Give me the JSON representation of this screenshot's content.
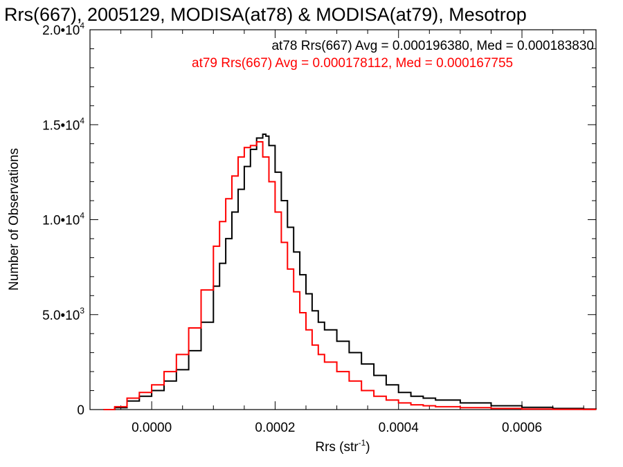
{
  "chart_data": {
    "type": "line",
    "title": "Rrs(667), 2005129, MODISA(at78) & MODISA(at79), Mesotrop",
    "xlabel": "Rrs (str",
    "xlabel_sup": "-1",
    "xlabel_tail": ")",
    "ylabel": "Number of Observations",
    "xlim": [
      -0.0001,
      0.00072
    ],
    "ylim": [
      0,
      20000
    ],
    "x_ticks": [
      {
        "value": 0.0,
        "label": "0.0000"
      },
      {
        "value": 0.0002,
        "label": "0.0002"
      },
      {
        "value": 0.0004,
        "label": "0.0004"
      },
      {
        "value": 0.0006,
        "label": "0.0006"
      }
    ],
    "y_ticks": [
      {
        "value": 0,
        "mant": "0",
        "exp": ""
      },
      {
        "value": 5000,
        "mant": "5.0•10",
        "exp": "3"
      },
      {
        "value": 10000,
        "mant": "1.0•10",
        "exp": "4"
      },
      {
        "value": 15000,
        "mant": "1.5•10",
        "exp": "4"
      },
      {
        "value": 20000,
        "mant": "2.0•10",
        "exp": "4"
      }
    ],
    "legend_position": "top-right",
    "series": [
      {
        "name": "at78",
        "color": "#000000",
        "stats_label": "at78 Rrs(667) Avg = 0.000196380, Med = 0.000183830",
        "x": [
          -7.8e-05,
          -6e-05,
          -4e-05,
          -2e-05,
          0.0,
          2e-05,
          4e-05,
          6e-05,
          8e-05,
          0.0001,
          0.00011,
          0.00012,
          0.00013,
          0.00014,
          0.00015,
          0.00016,
          0.00017,
          0.00018,
          0.000185,
          0.00019,
          0.0002,
          0.00021,
          0.00022,
          0.00023,
          0.00024,
          0.00025,
          0.00026,
          0.00027,
          0.00028,
          0.0003,
          0.00032,
          0.00034,
          0.00036,
          0.00038,
          0.0004,
          0.00042,
          0.00044,
          0.00046,
          0.0005,
          0.00055,
          0.0006,
          0.00065,
          0.0007,
          0.00072
        ],
        "values": [
          0,
          100,
          450,
          700,
          1000,
          1500,
          2100,
          3100,
          4600,
          6500,
          7700,
          9000,
          10400,
          11600,
          12800,
          13700,
          14300,
          14500,
          14400,
          13900,
          12500,
          11000,
          9600,
          8300,
          7100,
          6100,
          5200,
          4600,
          4200,
          3600,
          3000,
          2400,
          1800,
          1300,
          900,
          700,
          600,
          500,
          350,
          200,
          120,
          60,
          30,
          10
        ]
      },
      {
        "name": "at79",
        "color": "#ff0000",
        "stats_label": "at79 Rrs(667) Avg = 0.000178112, Med = 0.000167755",
        "x": [
          -7.8e-05,
          -6e-05,
          -4e-05,
          -2e-05,
          0.0,
          2e-05,
          4e-05,
          6e-05,
          8e-05,
          0.0001,
          0.00011,
          0.00012,
          0.00013,
          0.00014,
          0.00015,
          0.00016,
          0.00017,
          0.00018,
          0.00019,
          0.0002,
          0.00021,
          0.00022,
          0.00023,
          0.00024,
          0.00025,
          0.00026,
          0.00027,
          0.00028,
          0.0003,
          0.00032,
          0.00034,
          0.00036,
          0.00038,
          0.0004,
          0.00042,
          0.00044,
          0.00046,
          0.0005,
          0.00055,
          0.0006,
          0.00065,
          0.0007,
          0.00072
        ],
        "values": [
          0,
          150,
          600,
          900,
          1300,
          2000,
          2900,
          4300,
          6300,
          8600,
          9900,
          11100,
          12300,
          13300,
          13800,
          13900,
          14100,
          13300,
          12000,
          10400,
          8800,
          7400,
          6200,
          5100,
          4200,
          3400,
          2900,
          2500,
          2000,
          1500,
          1000,
          700,
          500,
          350,
          250,
          200,
          150,
          100,
          60,
          30,
          15,
          8,
          5
        ]
      }
    ]
  }
}
